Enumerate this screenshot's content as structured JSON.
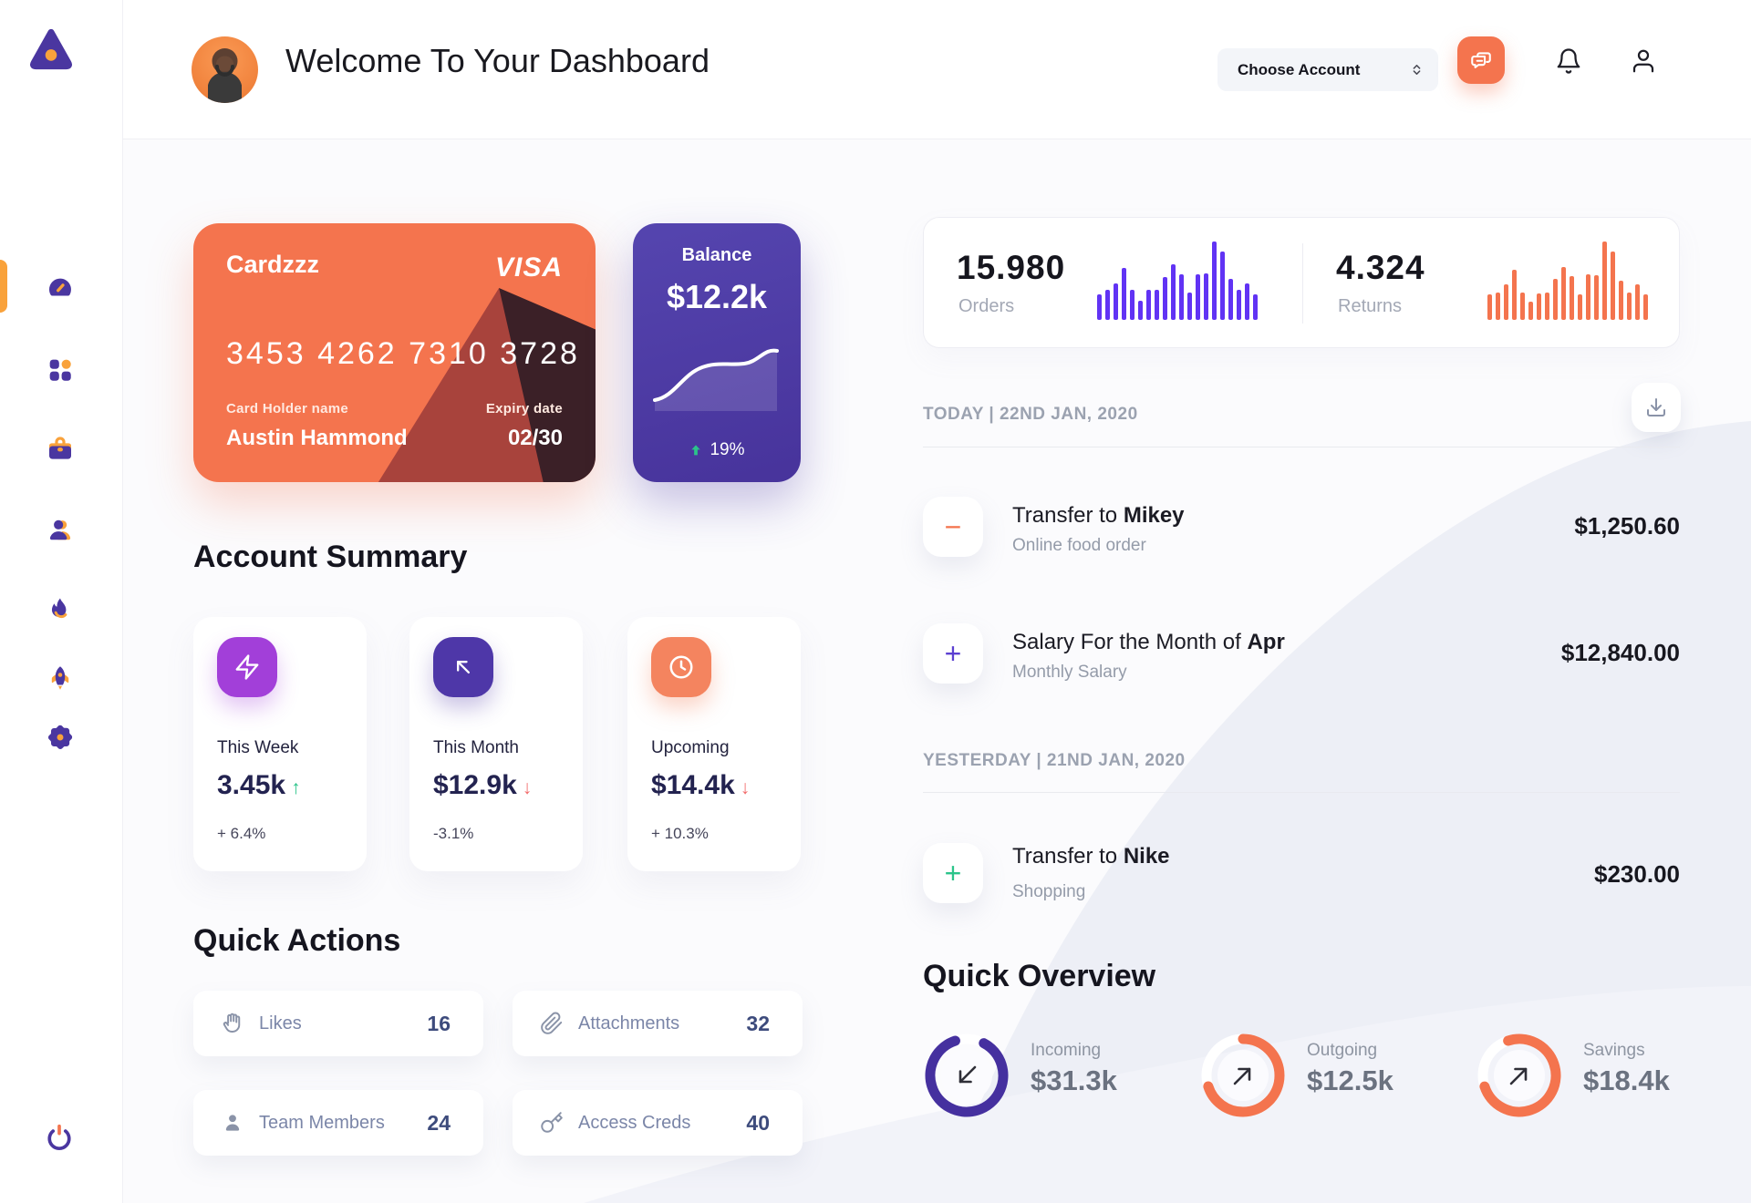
{
  "header": {
    "title": "Welcome To Your Dashboard",
    "account_selector": "Choose Account"
  },
  "sidebar": {
    "logo": "triangle-logo",
    "items": [
      "dashboard",
      "apps-grid",
      "briefcase",
      "contacts",
      "trending-flame",
      "rocket",
      "settings-gear"
    ],
    "power": "power"
  },
  "credit_card": {
    "name": "Cardzzz",
    "brand": "VISA",
    "number": "3453 4262 7310 3728",
    "holder_label": "Card Holder name",
    "holder_name": "Austin Hammond",
    "expiry_label": "Expiry date",
    "expiry": "02/30"
  },
  "balance_card": {
    "title": "Balance",
    "amount": "$12.2k",
    "change": "19%",
    "trend": "up"
  },
  "chart_data": [
    {
      "type": "bar",
      "title": "Orders mini bars",
      "values": [
        33,
        38,
        46,
        66,
        38,
        24,
        38,
        38,
        55,
        71,
        58,
        35,
        58,
        59,
        100,
        87,
        52,
        38,
        46,
        33
      ]
    },
    {
      "type": "bar",
      "title": "Returns mini bars",
      "values": [
        33,
        35,
        45,
        64,
        35,
        23,
        34,
        35,
        52,
        68,
        56,
        33,
        58,
        57,
        100,
        87,
        50,
        35,
        45,
        33
      ]
    },
    {
      "type": "line",
      "title": "Balance trend",
      "values": [
        12,
        16,
        38,
        46,
        50,
        52,
        56,
        78,
        72
      ]
    }
  ],
  "stats": {
    "orders": {
      "value": "15.980",
      "label": "Orders"
    },
    "returns": {
      "value": "4.324",
      "label": "Returns"
    }
  },
  "account_summary": {
    "title": "Account Summary",
    "cards": [
      {
        "icon": "zap-icon",
        "label": "This Week",
        "value": "3.45k",
        "trend": "up",
        "arrow": "↑",
        "delta": "+ 6.4%"
      },
      {
        "icon": "arrow-up-left-icon",
        "label": "This Month",
        "value": "$12.9k",
        "trend": "down",
        "arrow": "↓",
        "delta": "-3.1%"
      },
      {
        "icon": "clock-icon",
        "label": "Upcoming",
        "value": "$14.4k",
        "trend": "down",
        "arrow": "↓",
        "delta": "+ 10.3%"
      }
    ]
  },
  "quick_actions": {
    "title": "Quick Actions",
    "items": [
      {
        "icon": "wave-hand-icon",
        "label": "Likes",
        "count": "16"
      },
      {
        "icon": "paperclip-icon",
        "label": "Attachments",
        "count": "32"
      },
      {
        "icon": "team-member-icon",
        "label": "Team Members",
        "count": "24"
      },
      {
        "icon": "key-icon",
        "label": "Access Creds",
        "count": "40"
      }
    ]
  },
  "transactions": {
    "groups": [
      {
        "date_label": "TODAY | 22ND JAN, 2020",
        "items": [
          {
            "title": "Transfer to ",
            "title_bold": "Mikey",
            "subtitle": "Online food order",
            "amount": "$1,250.60",
            "symbol": "−",
            "symbol_color": "#F4744E"
          },
          {
            "title": "Salary For the Month of ",
            "title_bold": "Apr",
            "subtitle": "Monthly Salary",
            "amount": "$12,840.00",
            "symbol": "+",
            "symbol_color": "#5B3FD1"
          }
        ]
      },
      {
        "date_label": "YESTERDAY | 21ND JAN, 2020",
        "items": [
          {
            "title": "Transfer to ",
            "title_bold": "Nike",
            "subtitle": "Shopping",
            "amount": "$230.00",
            "symbol": "+",
            "symbol_color": "#2BC48A"
          }
        ]
      }
    ]
  },
  "quick_overview": {
    "title": "Quick Overview",
    "items": [
      {
        "label": "Incoming",
        "value": "$31.3k",
        "progress": 87,
        "color": "#45309F",
        "direction": "down-left"
      },
      {
        "label": "Outgoing",
        "value": "$12.5k",
        "progress": 70,
        "color": "#F4744E",
        "direction": "up-right"
      },
      {
        "label": "Savings",
        "value": "$18.4k",
        "progress": 75,
        "color": "#F4744E",
        "direction": "up-right"
      }
    ]
  },
  "colors": {
    "accent_orange": "#F4744E",
    "accent_gold": "#F9A23B",
    "brand_purple": "#4A36A0",
    "balance_purple": "#4F3CA7",
    "bar_purple": "#6133F4",
    "green_up": "#2BC48A",
    "red_down": "#F26B6B",
    "card_triangle_red": "#A8433C",
    "card_triangle_dark": "#3B2027"
  }
}
